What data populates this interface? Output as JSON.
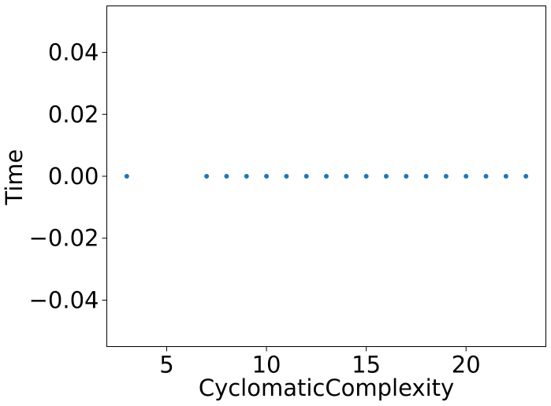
{
  "chart_data": {
    "type": "scatter",
    "xlabel": "CyclomaticComplexity",
    "ylabel": "Time",
    "xlim": [
      2.0,
      24.0
    ],
    "ylim": [
      -0.055,
      0.055
    ],
    "grid": false,
    "x_ticks": [
      5,
      10,
      15,
      20
    ],
    "x_tick_labels": [
      "5",
      "10",
      "15",
      "20"
    ],
    "y_ticks": [
      0.04,
      0.02,
      0.0,
      -0.02,
      -0.04
    ],
    "y_tick_labels": [
      "0.04",
      "0.02",
      "0.00",
      "−0.02",
      "−0.04"
    ],
    "marker_color": "#1f77b4",
    "series": [
      {
        "x": [
          3,
          7,
          8,
          9,
          10,
          11,
          12,
          13,
          14,
          15,
          16,
          17,
          18,
          19,
          20,
          21,
          22,
          23
        ],
        "y": [
          0,
          0,
          0,
          0,
          0,
          0,
          0,
          0,
          0,
          0,
          0,
          0,
          0,
          0,
          0,
          0,
          0,
          0
        ]
      }
    ]
  }
}
